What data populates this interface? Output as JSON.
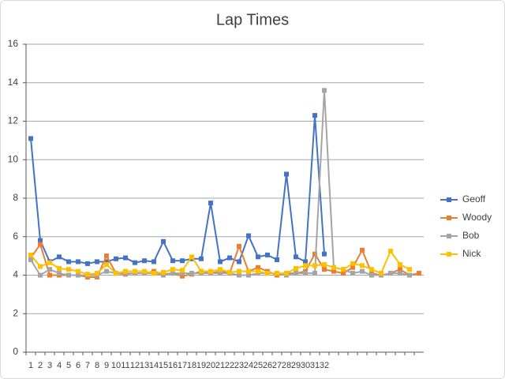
{
  "chart_data": {
    "type": "line",
    "title": "Lap Times",
    "categories": [
      "1",
      "2",
      "3",
      "4",
      "5",
      "6",
      "7",
      "8",
      "9",
      "10",
      "11",
      "12",
      "13",
      "14",
      "15",
      "16",
      "17",
      "18",
      "19",
      "20",
      "21",
      "22",
      "23",
      "24",
      "25",
      "26",
      "27",
      "28",
      "29",
      "30",
      "31",
      "32",
      null,
      null,
      null,
      null,
      null,
      null,
      null,
      null,
      null,
      null
    ],
    "series": [
      {
        "name": "Geoff",
        "color": "#4472c4",
        "values": [
          11.1,
          5.8,
          4.7,
          4.95,
          4.7,
          4.7,
          4.6,
          4.7,
          4.7,
          4.85,
          4.9,
          4.65,
          4.75,
          4.7,
          5.75,
          4.75,
          4.75,
          4.85,
          4.85,
          7.75,
          4.7,
          4.9,
          4.7,
          6.05,
          4.95,
          5.05,
          4.8,
          9.25,
          4.95,
          4.7,
          12.3,
          5.1,
          null,
          null,
          null,
          null,
          null,
          null,
          null,
          null,
          null,
          null
        ]
      },
      {
        "name": "Woody",
        "color": "#ed7d31",
        "values": [
          4.9,
          5.6,
          4.0,
          4.0,
          4.0,
          4.0,
          3.9,
          3.9,
          5.0,
          4.1,
          4.05,
          4.1,
          4.1,
          4.2,
          4.05,
          4.1,
          3.95,
          4.05,
          4.2,
          4.1,
          4.2,
          4.1,
          5.5,
          4.2,
          4.4,
          4.2,
          4.0,
          4.1,
          4.1,
          4.2,
          5.1,
          4.3,
          4.2,
          4.1,
          4.4,
          5.3,
          4.1,
          4.0,
          4.1,
          4.3,
          4.0,
          4.1
        ]
      },
      {
        "name": "Bob",
        "color": "#a5a5a5",
        "values": [
          4.8,
          4.0,
          4.3,
          4.1,
          4.0,
          4.0,
          4.0,
          4.0,
          4.2,
          4.1,
          4.1,
          4.1,
          4.1,
          4.1,
          4.0,
          4.1,
          4.1,
          4.1,
          4.1,
          4.1,
          4.1,
          4.1,
          4.0,
          4.0,
          4.1,
          4.1,
          4.1,
          4.0,
          4.1,
          4.1,
          4.1,
          13.6,
          4.4,
          4.3,
          4.1,
          4.2,
          4.0,
          4.0,
          4.1,
          4.1,
          4.0,
          null
        ]
      },
      {
        "name": "Nick",
        "color": "#ffc000",
        "values": [
          5.05,
          4.45,
          4.65,
          4.35,
          4.3,
          4.2,
          4.05,
          4.1,
          4.55,
          4.1,
          4.2,
          4.2,
          4.2,
          4.1,
          4.15,
          4.3,
          4.25,
          4.95,
          4.2,
          4.2,
          4.3,
          4.15,
          4.2,
          4.2,
          4.2,
          4.1,
          4.1,
          4.1,
          4.35,
          4.5,
          4.5,
          4.55,
          4.4,
          4.3,
          4.6,
          4.5,
          4.3,
          4.1,
          5.25,
          4.55,
          4.3,
          null
        ]
      }
    ],
    "ylim": [
      0,
      16
    ],
    "yticks": [
      0,
      2,
      4,
      6,
      8,
      10,
      12,
      14,
      16
    ],
    "grid": true,
    "legend": "right"
  }
}
